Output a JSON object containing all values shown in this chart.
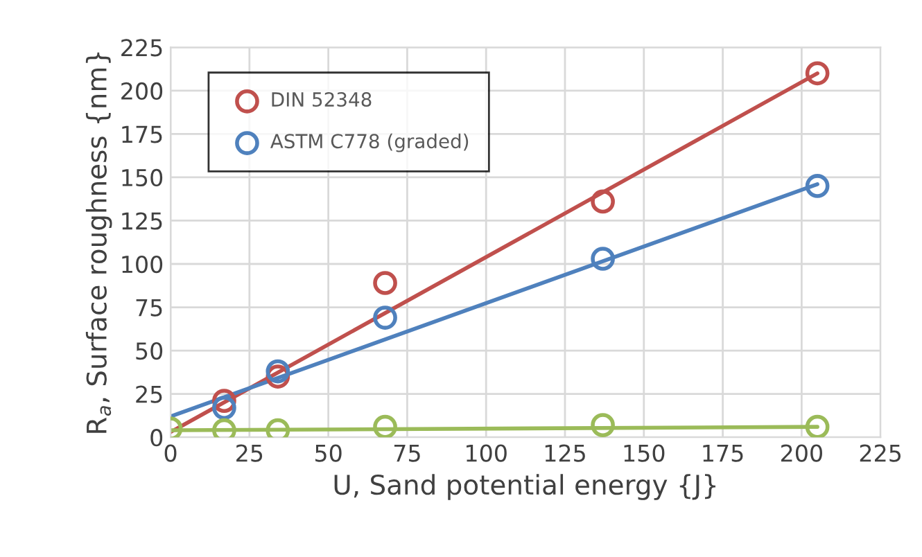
{
  "chart_data": {
    "type": "scatter",
    "xlabel": "U, Sand potential energy {J}",
    "ylabel": "R$_{a}$, Surface roughness {nm}",
    "xlim": [
      0,
      225
    ],
    "xticks": [
      0,
      25,
      50,
      75,
      100,
      125,
      150,
      175,
      200,
      225
    ],
    "ylim": [
      0,
      225
    ],
    "yticks": [
      0,
      25,
      50,
      75,
      100,
      125,
      150,
      175,
      200,
      225
    ],
    "grid": true,
    "legend": "top left",
    "series": [
      {
        "type": "line",
        "marker": "none",
        "color": "#c0504d",
        "x": [
          0,
          205
        ],
        "values": [
          3,
          210
        ]
      },
      {
        "type": "line",
        "marker": "none",
        "color": "#4f81bd",
        "x": [
          0,
          205
        ],
        "values": [
          12,
          146
        ]
      },
      {
        "type": "line",
        "marker": "none",
        "color": "#9bbb59",
        "x": [
          0,
          205
        ],
        "values": [
          4,
          6
        ]
      },
      {
        "marker": "circle",
        "name": "DIN 52348",
        "color": "#c0504d",
        "x": [
          17,
          34,
          68,
          137,
          205
        ],
        "values": [
          21,
          35,
          89,
          136,
          210
        ]
      },
      {
        "marker": "circle",
        "name": "ASTM C778 (graded)",
        "color": "#4f81bd",
        "x": [
          17,
          34,
          68,
          137,
          205
        ],
        "values": [
          17,
          38,
          69,
          103,
          145
        ]
      },
      {
        "marker": "circle",
        "color": "#9bbb59",
        "x": [
          0,
          17,
          34,
          68,
          137,
          205
        ],
        "values": [
          5,
          4,
          4,
          6,
          7,
          6
        ]
      }
    ]
  }
}
